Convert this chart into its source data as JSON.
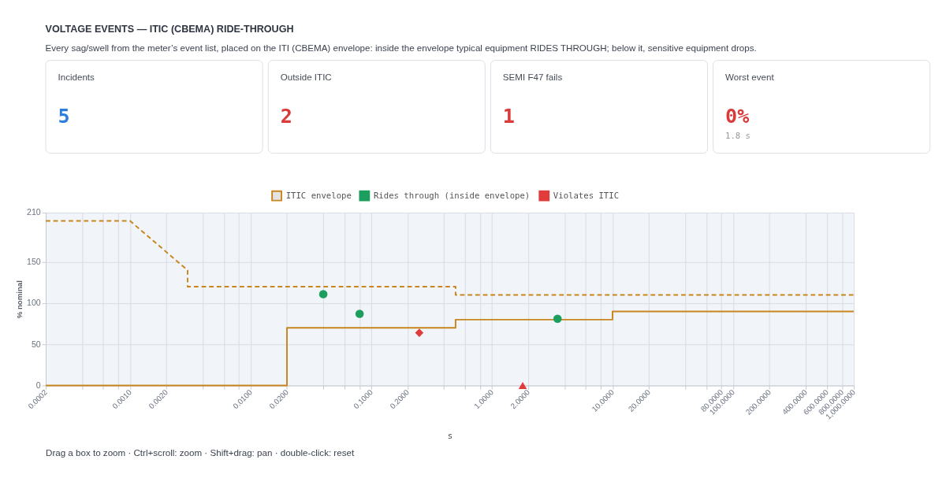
{
  "chart_data": [
    {
      "type": "other",
      "title": "VOLTAGE EVENTS — ITIC (CBEMA) RIDE-THROUGH",
      "subtitle": "Every sag/swell from the meter’s event list, placed on the ITI (CBEMA) envelope: inside the envelope typical equipment RIDES THROUGH; below it, sensitive equipment drops.",
      "categories": [
        "Incidents",
        "Outside ITIC",
        "SEMI F47 fails",
        "Worst event"
      ],
      "annotations": [
        {
          "text": "5",
          "x": "Incidents"
        },
        {
          "text": "2",
          "x": "Outside ITIC"
        },
        {
          "text": "1",
          "x": "SEMI F47 fails"
        },
        {
          "text": "0%",
          "x": "Worst event"
        },
        {
          "text": "1.8 s",
          "x": "Worst event"
        }
      ]
    },
    {
      "type": "line",
      "xlabel": "s",
      "ylabel": "% nominal",
      "log": "x",
      "grid": true,
      "legend": "top",
      "xlim": [
        0.0002,
        1000
      ],
      "xticks": [
        {
          "value": 0.0002,
          "label": "0.0002"
        },
        {
          "value": 0.0004,
          "label": null
        },
        {
          "value": 0.0006,
          "label": null
        },
        {
          "value": 0.0008,
          "label": null
        },
        {
          "value": 0.001,
          "label": "0.0010"
        },
        {
          "value": 0.002,
          "label": "0.0020"
        },
        {
          "value": 0.004,
          "label": null
        },
        {
          "value": 0.006,
          "label": null
        },
        {
          "value": 0.008,
          "label": null
        },
        {
          "value": 0.01,
          "label": "0.0100"
        },
        {
          "value": 0.02,
          "label": "0.0200"
        },
        {
          "value": 0.04,
          "label": null
        },
        {
          "value": 0.06,
          "label": null
        },
        {
          "value": 0.08,
          "label": null
        },
        {
          "value": 0.1,
          "label": "0.1000"
        },
        {
          "value": 0.2,
          "label": "0.2000"
        },
        {
          "value": 0.4,
          "label": null
        },
        {
          "value": 0.6,
          "label": null
        },
        {
          "value": 0.8,
          "label": null
        },
        {
          "value": 1,
          "label": "1.0000"
        },
        {
          "value": 2,
          "label": "2.0000"
        },
        {
          "value": 4,
          "label": null
        },
        {
          "value": 6,
          "label": null
        },
        {
          "value": 8,
          "label": null
        },
        {
          "value": 10,
          "label": "10.0000"
        },
        {
          "value": 20,
          "label": "20.0000"
        },
        {
          "value": 40,
          "label": null
        },
        {
          "value": 60,
          "label": null
        },
        {
          "value": 80,
          "label": "80.0000"
        },
        {
          "value": 100,
          "label": "100.0000"
        },
        {
          "value": 200,
          "label": "200.0000"
        },
        {
          "value": 400,
          "label": "400.0000"
        },
        {
          "value": 600,
          "label": "600.0000"
        },
        {
          "value": 800,
          "label": "800.0000"
        },
        {
          "value": 1000,
          "label": "1,000.0000"
        }
      ],
      "ylim": [
        0,
        210
      ],
      "yticks": [
        0,
        50,
        100,
        150,
        210
      ],
      "series": [
        {
          "name": "ITIC envelope",
          "type": "line",
          "line_style": "solid",
          "color": "#c8861e",
          "x": [
            0.0002,
            0.02,
            0.02,
            0.5,
            0.5,
            10,
            10,
            1000
          ],
          "values": [
            0,
            0,
            70,
            70,
            80,
            80,
            90,
            90
          ]
        },
        {
          "type": "line",
          "line_style": "dashed",
          "color": "#c8861e",
          "x": [
            0.0002,
            0.001,
            0.003,
            0.003,
            0.5,
            0.5,
            1000
          ],
          "values": [
            200,
            200,
            140,
            120,
            120,
            110,
            110
          ]
        },
        {
          "name": "Rides through (inside envelope)",
          "type": "scatter",
          "marker": "circle",
          "color": "#1b9e5e",
          "x": [
            0.04,
            0.08,
            3.5
          ],
          "values": [
            111,
            87,
            81
          ]
        },
        {
          "name": "Violates ITIC",
          "type": "scatter",
          "marker": "diamond",
          "color": "#e03c3c",
          "x": [
            0.25
          ],
          "values": [
            64
          ]
        },
        {
          "type": "scatter",
          "marker": "triangle",
          "color": "#e03c3c",
          "x": [
            1.8
          ],
          "values": [
            0
          ]
        }
      ],
      "annotations": [
        "Drag a box to zoom · Ctrl+scroll: zoom · Shift+drag: pan · double-click: reset"
      ]
    }
  ]
}
